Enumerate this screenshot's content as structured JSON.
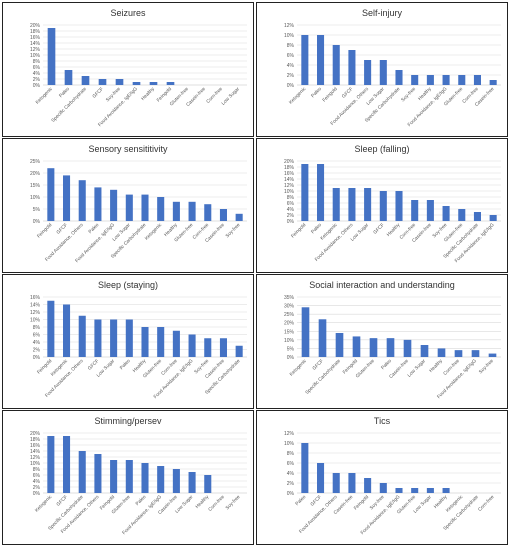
{
  "colors": {
    "bar": "#4472c4",
    "grid": "#d9d9d9",
    "axis": "#bfbfbf",
    "text": "#595959"
  },
  "chart_data": [
    {
      "type": "bar",
      "title": "Seizures",
      "categories": [
        "Ketogenic",
        "Paleo",
        "Specific Carbohydrate",
        "GFCF",
        "Soy-free",
        "Food Avoidance, IgE/IgG",
        "Healthy",
        "Feingold",
        "Gluten-free",
        "Casein-free",
        "Corn-free",
        "Low Sugar"
      ],
      "values": [
        19,
        5,
        3,
        2,
        2,
        1,
        1,
        1,
        0,
        0,
        0,
        0
      ],
      "ylim": [
        0,
        20
      ],
      "ytick_labels": [
        "0%",
        "2%",
        "4%",
        "6%",
        "8%",
        "10%",
        "12%",
        "14%",
        "16%",
        "18%",
        "20%"
      ],
      "grid": true
    },
    {
      "type": "bar",
      "title": "Self-injury",
      "categories": [
        "Ketogenic",
        "Paleo",
        "Feingold",
        "GFCF",
        "Food Avoidance, Others",
        "Low Sugar",
        "Specific Carbohydrate",
        "Soy-free",
        "Healthy",
        "Food Avoidance, IgE/IgG",
        "Gluten-free",
        "Corn-free",
        "Casein-free"
      ],
      "values": [
        10,
        10,
        8,
        7,
        5,
        5,
        3,
        2,
        2,
        2,
        2,
        2,
        1
      ],
      "ylim": [
        0,
        12
      ],
      "ytick_labels": [
        "0%",
        "2%",
        "4%",
        "6%",
        "8%",
        "10%",
        "12%"
      ],
      "grid": true
    },
    {
      "type": "bar",
      "title": "Sensory sensititivity",
      "categories": [
        "Feingold",
        "GFCF",
        "Food Avoidance, Others",
        "Paleo",
        "Food Avoidance, IgE/IgG",
        "Low Sugar",
        "Specific Carbohydrate",
        "Ketogenic",
        "Healthy",
        "Gluten-free",
        "Corn-free",
        "Casein-free",
        "Soy-free"
      ],
      "values": [
        22,
        19,
        17,
        14,
        13,
        11,
        11,
        10,
        8,
        8,
        7,
        5,
        3
      ],
      "ylim": [
        0,
        25
      ],
      "ytick_labels": [
        "0%",
        "5%",
        "10%",
        "15%",
        "20%",
        "25%"
      ],
      "grid": true
    },
    {
      "type": "bar",
      "title": "Sleep (falling)",
      "categories": [
        "Feingold",
        "Paleo",
        "Ketogenic",
        "Food Avoidance, Others",
        "Low Sugar",
        "GFCF",
        "Healthy",
        "Corn-free",
        "Casein-free",
        "Soy-free",
        "Gluten-free",
        "Specific Carbohydrate",
        "Food Avoidance, IgE/IgG"
      ],
      "values": [
        19,
        19,
        11,
        11,
        11,
        10,
        10,
        7,
        7,
        5,
        4,
        3,
        2
      ],
      "ylim": [
        0,
        20
      ],
      "ytick_labels": [
        "0%",
        "2%",
        "4%",
        "6%",
        "8%",
        "10%",
        "12%",
        "14%",
        "16%",
        "18%",
        "20%"
      ],
      "grid": true
    },
    {
      "type": "bar",
      "title": "Sleep (staying)",
      "categories": [
        "Feingold",
        "Ketogenic",
        "Food Avoidance, Others",
        "GFCF",
        "Low Sugar",
        "Paleo",
        "Healthy",
        "Gluten-free",
        "Corn-free",
        "Food Avoidance, IgE/IgG",
        "Soy-free",
        "Casein-free",
        "Specific Carbohydrate"
      ],
      "values": [
        15,
        14,
        11,
        10,
        10,
        10,
        8,
        8,
        7,
        6,
        5,
        5,
        3
      ],
      "ylim": [
        0,
        16
      ],
      "ytick_labels": [
        "0%",
        "2%",
        "4%",
        "6%",
        "8%",
        "10%",
        "12%",
        "14%",
        "16%"
      ],
      "grid": true
    },
    {
      "type": "bar",
      "title": "Social interaction and understanding",
      "categories": [
        "Ketogenic",
        "GFCF",
        "Specific Carbohydrate",
        "Feingold",
        "Gluten-free",
        "Paleo",
        "Casein-free",
        "Low Sugar",
        "Healthy",
        "Corn-free",
        "Food Avoidance, IgE/IgG",
        "Soy-free"
      ],
      "values": [
        29,
        22,
        14,
        12,
        11,
        11,
        10,
        7,
        5,
        4,
        4,
        2
      ],
      "ylim": [
        0,
        35
      ],
      "ytick_labels": [
        "0%",
        "5%",
        "10%",
        "15%",
        "20%",
        "25%",
        "30%",
        "35%"
      ],
      "grid": true
    },
    {
      "type": "bar",
      "title": "Stimming/persev",
      "categories": [
        "Ketogenic",
        "GFCF",
        "Specific Carbohydrate",
        "Food Avoidance, Others",
        "Feingold",
        "Gluten-free",
        "Paleo",
        "Food Avoidance, IgE/IgG",
        "Casein-free",
        "Low Sugar",
        "Healthy",
        "Corn-free",
        "Soy-free"
      ],
      "values": [
        19,
        19,
        14,
        13,
        11,
        11,
        10,
        9,
        8,
        7,
        6,
        0,
        0
      ],
      "ylim": [
        0,
        20
      ],
      "ytick_labels": [
        "0%",
        "2%",
        "4%",
        "6%",
        "8%",
        "10%",
        "12%",
        "14%",
        "16%",
        "18%",
        "20%"
      ],
      "grid": true
    },
    {
      "type": "bar",
      "title": "Tics",
      "categories": [
        "Paleo",
        "GFCF",
        "Food Avoidance, Others",
        "Casein-free",
        "Feingold",
        "Soy-free",
        "Food Avoidance, IgE/IgG",
        "Gluten-free",
        "Low Sugar",
        "Healthy",
        "Ketogenic",
        "Specific Carbohydrate",
        "Corn-free"
      ],
      "values": [
        10,
        6,
        4,
        4,
        3,
        2,
        1,
        1,
        1,
        1,
        0,
        0,
        0
      ],
      "ylim": [
        0,
        12
      ],
      "ytick_labels": [
        "0%",
        "2%",
        "4%",
        "6%",
        "8%",
        "10%",
        "12%"
      ],
      "grid": true
    }
  ]
}
